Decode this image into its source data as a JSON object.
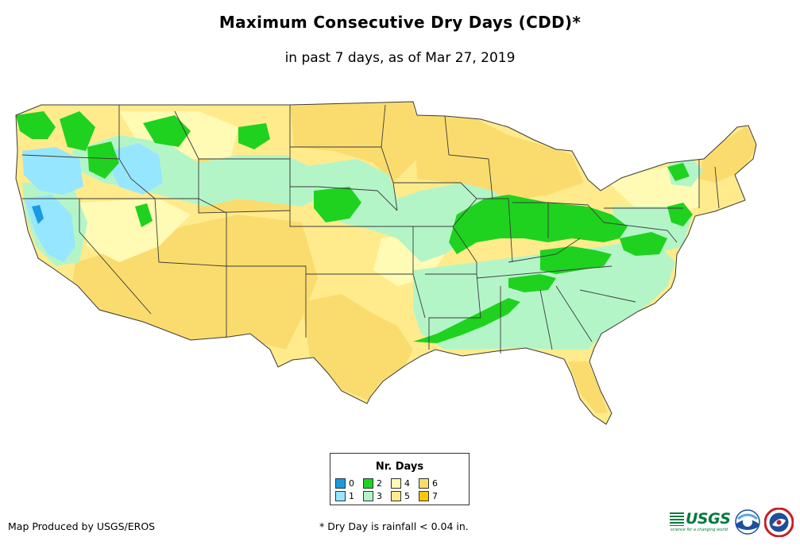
{
  "header": {
    "title": "Maximum Consecutive Dry Days (CDD)*",
    "subtitle": "in past 7 days, as of Mar 27, 2019"
  },
  "legend": {
    "title": "Nr. Days",
    "items": [
      {
        "label": "0",
        "color": "#1a9ae0"
      },
      {
        "label": "1",
        "color": "#96e6ff"
      },
      {
        "label": "2",
        "color": "#1fd21f"
      },
      {
        "label": "3",
        "color": "#b4f5c8"
      },
      {
        "label": "4",
        "color": "#fffab4"
      },
      {
        "label": "5",
        "color": "#ffeb8c"
      },
      {
        "label": "6",
        "color": "#fadc6e"
      },
      {
        "label": "7",
        "color": "#fac800"
      }
    ]
  },
  "footer": {
    "credit": "Map Produced by USGS/EROS",
    "note": "* Dry Day is rainfall < 0.04 in."
  },
  "logos": {
    "usgs": "USGS",
    "usgs_tagline": "science for a changing world",
    "noaa": "noaa",
    "nws": "NWS"
  },
  "colors": {
    "background": "#ffffff",
    "border": "#3a3a3a",
    "usgs_green": "#007a3d",
    "noaa_blue": "#1c4f9c"
  }
}
